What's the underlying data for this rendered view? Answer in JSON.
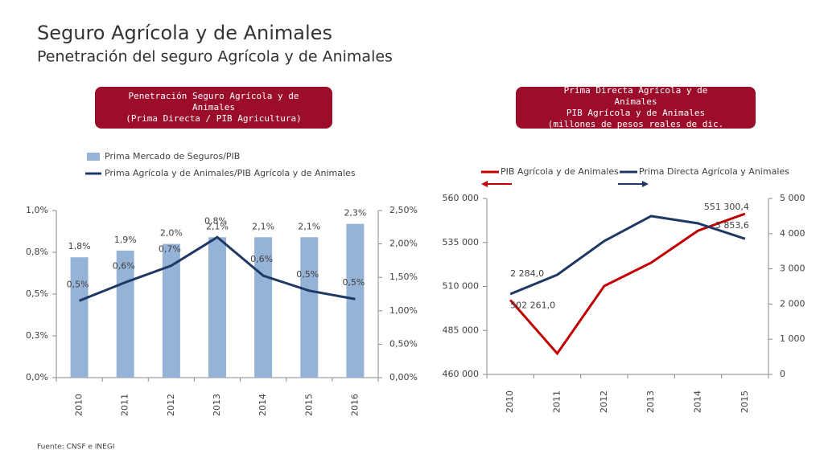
{
  "header": {
    "title": "Seguro Agrícola y de Animales",
    "subtitle": "Penetración del seguro Agrícola y de Animales"
  },
  "chart_data": [
    {
      "type": "bar",
      "header_box": [
        "Penetración Seguro Agrícola y de",
        "Animales",
        "(Prima Directa / PIB Agricultura)"
      ],
      "categories": [
        "2010",
        "2011",
        "2012",
        "2013",
        "2014",
        "2015",
        "2016"
      ],
      "series": [
        {
          "name": "Prima Mercado de Seguros/PIB",
          "type": "bar",
          "color": "#95b3d7",
          "axis": "y2",
          "values": [
            1.8,
            1.9,
            2.0,
            2.1,
            2.1,
            2.1,
            2.3
          ],
          "value_labels": [
            "1,8%",
            "1,9%",
            "2,0%",
            "2,1%",
            "2,1%",
            "2,1%",
            "2,3%"
          ]
        },
        {
          "name": "Prima Agrícola y de Animales/PIB Agrícola y de Animales",
          "type": "line",
          "color": "#1f3864",
          "values": [
            0.46,
            0.57,
            0.67,
            0.84,
            0.61,
            0.52,
            0.47
          ],
          "value_labels": [
            "0,5%",
            "0,6%",
            "0,7%",
            "0,8%",
            "0,6%",
            "0,5%",
            "0,5%"
          ]
        }
      ],
      "ylim": [
        0,
        1
      ],
      "yticks": [
        {
          "value": 0,
          "label": "0,0%"
        },
        {
          "value": 0.25,
          "label": "0,3%"
        },
        {
          "value": 0.5,
          "label": "0,5%"
        },
        {
          "value": 0.75,
          "label": "0,8%"
        },
        {
          "value": 1,
          "label": "1,0%"
        }
      ],
      "y2lim": [
        0,
        2.5
      ],
      "y2ticks": [
        {
          "value": 0,
          "label": "0,00%"
        },
        {
          "value": 0.5,
          "label": "0,50%"
        },
        {
          "value": 1,
          "label": "1,00%"
        },
        {
          "value": 1.5,
          "label": "1,50%"
        },
        {
          "value": 2,
          "label": "2,00%"
        },
        {
          "value": 2.5,
          "label": "2,50%"
        }
      ],
      "legend": "top-left"
    },
    {
      "type": "line",
      "header_box": [
        "Prima Directa Agrícola y de",
        "Animales",
        "PIB Agrícola y de Animales",
        "(millones de pesos reales de dic."
      ],
      "categories": [
        "2010",
        "2011",
        "2012",
        "2013",
        "2014",
        "2015"
      ],
      "series": [
        {
          "name": "PIB Agrícola y de Animales",
          "type": "line",
          "color": "#c00000",
          "values": [
            502261.0,
            471900,
            510200,
            523500,
            541700,
            551300.4
          ],
          "value_labels": [
            "502 261,0",
            null,
            null,
            null,
            null,
            "551 300,4"
          ]
        },
        {
          "name": "Prima Directa Agrícola y Animales",
          "type": "line",
          "color": "#1f3864",
          "axis": "y2",
          "values": [
            2284.0,
            2831,
            3790,
            4498,
            4292,
            3853.6
          ],
          "value_labels": [
            "2 284,0",
            null,
            null,
            null,
            null,
            "3 853,6"
          ]
        }
      ],
      "ylim": [
        460000,
        560000
      ],
      "yticks": [
        {
          "value": 460000,
          "label": "460 000"
        },
        {
          "value": 485000,
          "label": "485 000"
        },
        {
          "value": 510000,
          "label": "510 000"
        },
        {
          "value": 535000,
          "label": "535 000"
        },
        {
          "value": 560000,
          "label": "560 000"
        }
      ],
      "y2lim": [
        0,
        5000
      ],
      "y2ticks": [
        0,
        {
          "value": 1000,
          "label": "1 000"
        },
        {
          "value": 2000,
          "label": "2 000"
        },
        {
          "value": 3000,
          "label": "3 000"
        },
        {
          "value": 4000,
          "label": "4 000"
        },
        {
          "value": 5000,
          "label": "5 000"
        }
      ],
      "legend": "top"
    }
  ],
  "source": "Fuente: CNSF e INEGI"
}
